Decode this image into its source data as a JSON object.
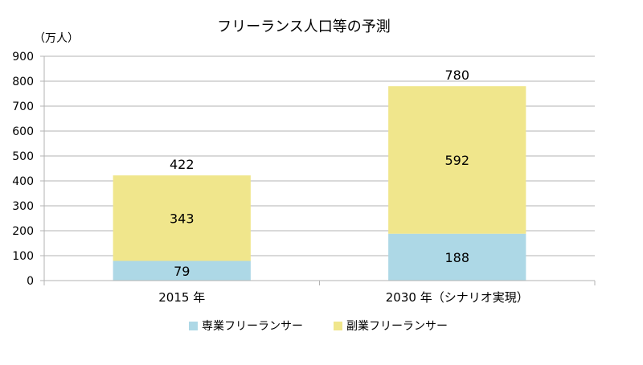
{
  "chart_data": {
    "type": "bar",
    "stacked": true,
    "title": "フリーランス人口等の予測",
    "unit_label": "（万人）",
    "categories": [
      "2015 年",
      "2030 年（シナリオ実現）"
    ],
    "series": [
      {
        "name": "専業フリーランサー",
        "values": [
          79,
          188
        ],
        "color": "#add8e6"
      },
      {
        "name": "副業フリーランサー",
        "values": [
          343,
          592
        ],
        "color": "#f0e68c"
      }
    ],
    "totals": [
      422,
      780
    ],
    "ylim": [
      0,
      900
    ],
    "yticks": [
      0,
      100,
      200,
      300,
      400,
      500,
      600,
      700,
      800,
      900
    ],
    "grid": true,
    "legend_position": "bottom"
  }
}
